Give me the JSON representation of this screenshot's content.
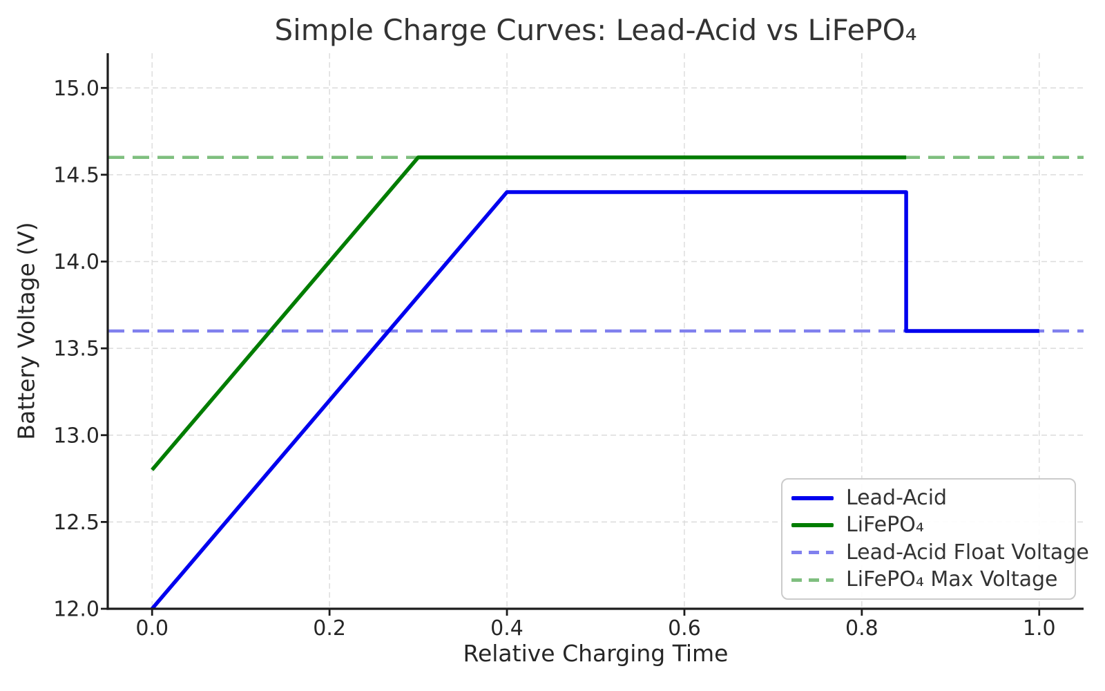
{
  "figure": {
    "background": "#FFFFFF",
    "text_color": "#333333",
    "spine_color": "#1C1C1C"
  },
  "chart_data": {
    "type": "line",
    "title": "Simple Charge Curves: Lead-Acid vs LiFePO₄",
    "xlabel": "Relative Charging Time",
    "ylabel": "Battery Voltage (V)",
    "xlim": [
      -0.05,
      1.05
    ],
    "ylim": [
      12.0,
      15.2
    ],
    "x_ticks": {
      "values": [
        0.0,
        0.2,
        0.4,
        0.6,
        0.8,
        1.0
      ],
      "labels": [
        "0.0",
        "0.2",
        "0.4",
        "0.6",
        "0.8",
        "1.0"
      ]
    },
    "y_ticks": {
      "values": [
        12.0,
        12.5,
        13.0,
        13.5,
        14.0,
        14.5,
        15.0
      ],
      "labels": [
        "12.0",
        "12.5",
        "13.0",
        "13.5",
        "14.0",
        "14.5",
        "15.0"
      ]
    },
    "grid": {
      "on": true,
      "color": "#DBDBDB",
      "style": "dashed"
    },
    "series": [
      {
        "name": "Lead-Acid",
        "color": "#0000EE",
        "style": "solid",
        "points": [
          [
            0.0,
            12.0
          ],
          [
            0.4,
            14.4
          ],
          [
            0.85,
            14.4
          ],
          [
            0.85,
            13.6
          ],
          [
            1.0,
            13.6
          ]
        ]
      },
      {
        "name": "LiFePO₄",
        "color": "#007D00",
        "style": "solid",
        "points": [
          [
            0.0,
            12.8
          ],
          [
            0.3,
            14.6
          ],
          [
            0.85,
            14.6
          ]
        ]
      }
    ],
    "reference_lines": [
      {
        "name": "Lead-Acid Float Voltage",
        "y": 13.6,
        "color": "#8080EE",
        "style": "dashed"
      },
      {
        "name": "LiFePO₄ Max Voltage",
        "y": 14.6,
        "color": "#7FBF7F",
        "style": "dashed"
      }
    ],
    "legend": {
      "position": "lower right",
      "items": [
        {
          "label": "Lead-Acid",
          "color": "#0000EE",
          "style": "solid"
        },
        {
          "label": "LiFePO₄",
          "color": "#007D00",
          "style": "solid"
        },
        {
          "label": "Lead-Acid Float Voltage",
          "color": "#8080EE",
          "style": "dashed"
        },
        {
          "label": "LiFePO₄ Max Voltage",
          "color": "#7FBF7F",
          "style": "dashed"
        }
      ]
    }
  }
}
